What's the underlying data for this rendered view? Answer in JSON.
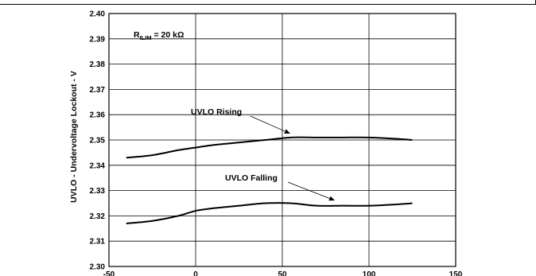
{
  "chart_data": {
    "type": "line",
    "ylabel": "UVLO - Undervoltage Lockout - V",
    "xlabel": "",
    "xlim": [
      -50,
      150
    ],
    "ylim": [
      2.3,
      2.4
    ],
    "x_ticks": [
      -50,
      0,
      50,
      100,
      150
    ],
    "y_ticks": [
      2.3,
      2.31,
      2.32,
      2.33,
      2.34,
      2.35,
      2.36,
      2.37,
      2.38,
      2.39,
      2.4
    ],
    "y_tick_labels": [
      "2.30",
      "2.31",
      "2.32",
      "2.33",
      "2.34",
      "2.35",
      "2.36",
      "2.37",
      "2.38",
      "2.39",
      "2.40"
    ],
    "grid": true,
    "series": [
      {
        "name": "UVLO Rising",
        "x": [
          -40,
          -25,
          -10,
          0,
          10,
          25,
          40,
          55,
          70,
          85,
          100,
          115,
          125
        ],
        "values": [
          2.343,
          2.344,
          2.346,
          2.347,
          2.348,
          2.349,
          2.35,
          2.351,
          2.351,
          2.351,
          2.351,
          2.3505,
          2.35
        ]
      },
      {
        "name": "UVLO Falling",
        "x": [
          -40,
          -25,
          -10,
          0,
          10,
          25,
          40,
          55,
          70,
          85,
          100,
          115,
          125
        ],
        "values": [
          2.317,
          2.318,
          2.32,
          2.322,
          2.323,
          2.324,
          2.325,
          2.325,
          2.324,
          2.324,
          2.324,
          2.3245,
          2.325
        ]
      }
    ],
    "annotations": {
      "condition_main": "R",
      "condition_sub": "ILIM",
      "condition_rest": " = 20 kΩ",
      "rising_label": "UVLO Rising",
      "falling_label": "UVLO Falling"
    }
  }
}
